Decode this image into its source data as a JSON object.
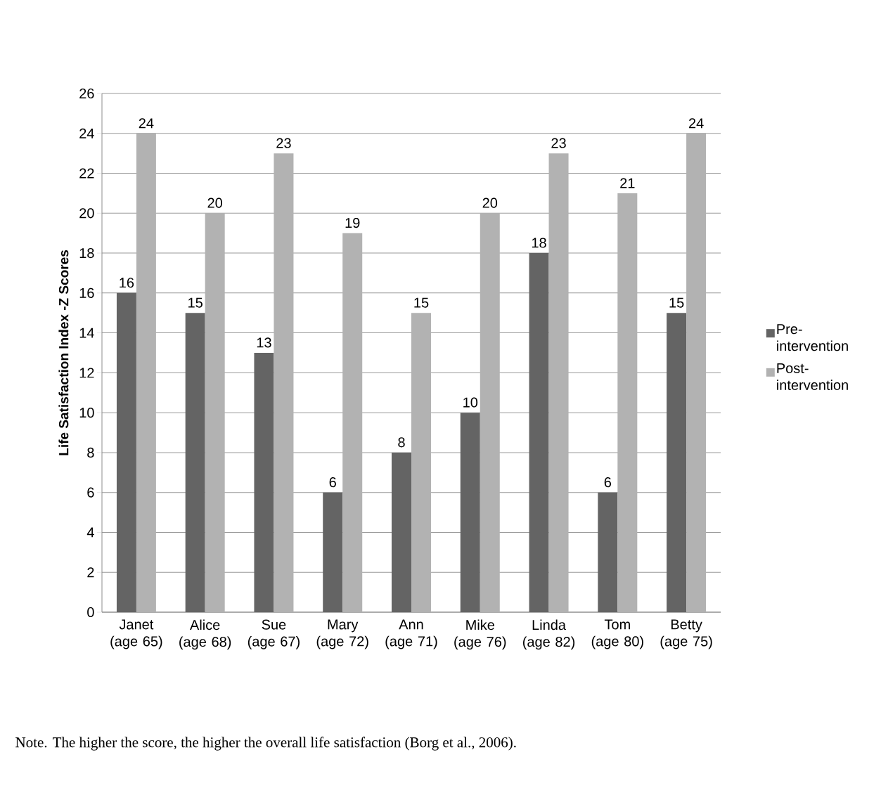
{
  "chart_data": {
    "type": "bar",
    "ylabel": "Life Satisfaction Index -Z Scores",
    "categories": [
      "Janet (age 65)",
      "Alice (age 68)",
      "Sue (age 67)",
      "Mary (age 72)",
      "Ann (age 71)",
      "Mike (age 76)",
      "Linda (age 82)",
      "Tom (age 80)",
      "Betty (age 75)"
    ],
    "series": [
      {
        "name": "Pre-intervention",
        "color": "#646464",
        "values": [
          16,
          15,
          13,
          6,
          8,
          10,
          18,
          6,
          15
        ]
      },
      {
        "name": "Post-intervention",
        "color": "#b2b2b2",
        "values": [
          24,
          20,
          23,
          19,
          15,
          20,
          23,
          21,
          24
        ]
      }
    ],
    "ylim": [
      0,
      26
    ],
    "yticks": [
      0,
      2,
      4,
      6,
      8,
      10,
      12,
      14,
      16,
      18,
      20,
      22,
      24,
      26
    ],
    "grid": "y",
    "legend": "right",
    "data_labels": true,
    "annotations": [
      "Note.  The higher the score, the higher the overall life satisfaction (Borg et al., 2006)."
    ]
  }
}
